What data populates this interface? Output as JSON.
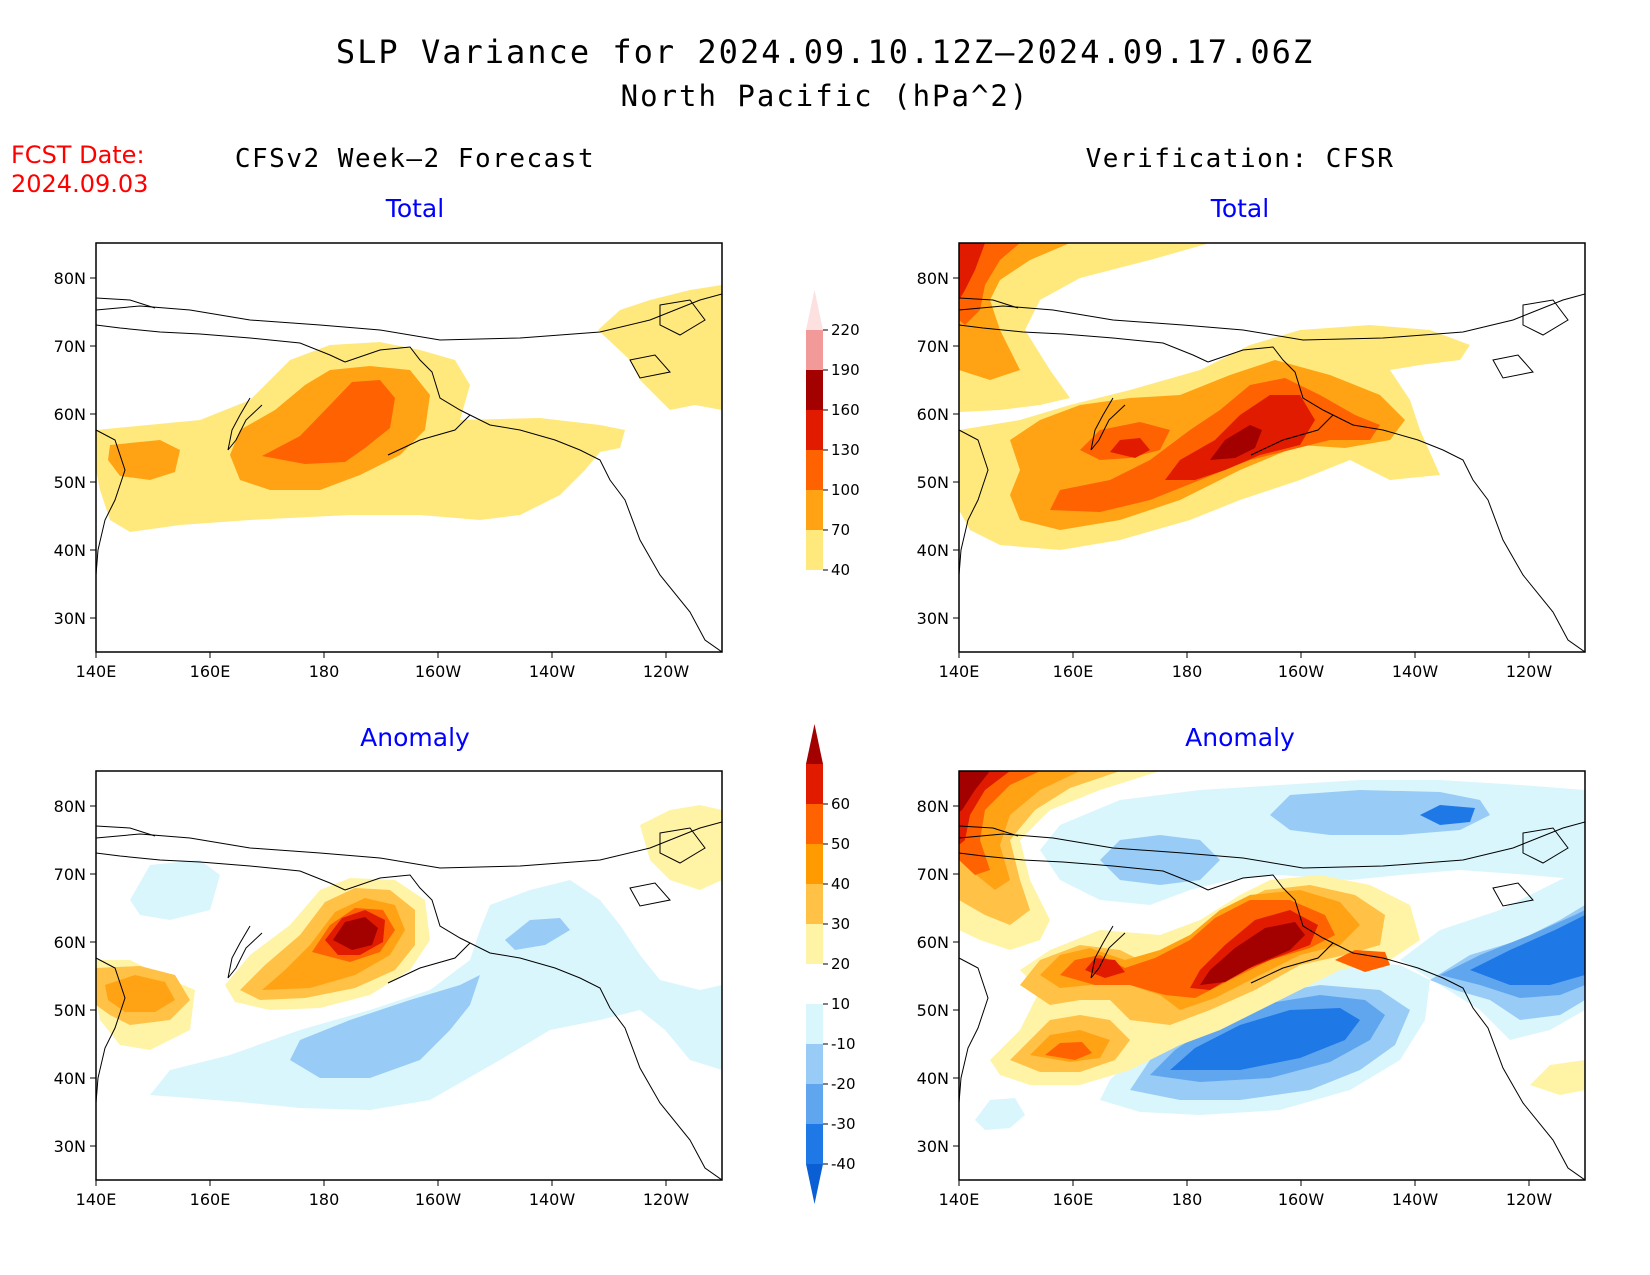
{
  "header": {
    "title_line1": "SLP Variance for 2024.09.10.12Z–2024.09.17.06Z",
    "title_line2": "North Pacific (hPa^2)",
    "fcst_label": "FCST Date:",
    "fcst_date": "2024.09.03",
    "left_column_title": "CFSv2 Week–2 Forecast",
    "right_column_title": "Verification: CFSR"
  },
  "panels": [
    {
      "id": "fcst-total",
      "subtitle": "Total",
      "colorbar": "total"
    },
    {
      "id": "verif-total",
      "subtitle": "Total",
      "colorbar": "total"
    },
    {
      "id": "fcst-anomaly",
      "subtitle": "Anomaly",
      "colorbar": "anomaly"
    },
    {
      "id": "verif-anomaly",
      "subtitle": "Anomaly",
      "colorbar": "anomaly"
    }
  ],
  "axes": {
    "lon_ticks": [
      "140E",
      "160E",
      "180",
      "160W",
      "140W",
      "120W"
    ],
    "lat_ticks": [
      "30N",
      "40N",
      "50N",
      "60N",
      "70N",
      "80N"
    ],
    "lon_range": [
      "140E",
      "110W"
    ],
    "lat_range": [
      "25N",
      "85N"
    ]
  },
  "colorbars": {
    "total": {
      "levels": [
        "40",
        "70",
        "100",
        "130",
        "160",
        "190",
        "220"
      ],
      "colors": [
        "#ffe97d",
        "#ffa314",
        "#ff6200",
        "#e01b00",
        "#a30000",
        "#f29a9a",
        "#fde0e0"
      ]
    },
    "anomaly": {
      "levels": [
        "-40",
        "-30",
        "-20",
        "-10",
        "10",
        "20",
        "30",
        "40",
        "50",
        "60"
      ],
      "colors": [
        "#0a5fd4",
        "#1e78e6",
        "#5fa6ef",
        "#98cbf5",
        "#d9f6fd",
        "#ffffff",
        "#fff3a6",
        "#ffc146",
        "#ff9a00",
        "#ff6200",
        "#e01b00",
        "#a30000"
      ]
    }
  },
  "colors": {
    "title": "#000000",
    "subtitle": "#0000ff",
    "fcst_date": "#ff0000"
  }
}
